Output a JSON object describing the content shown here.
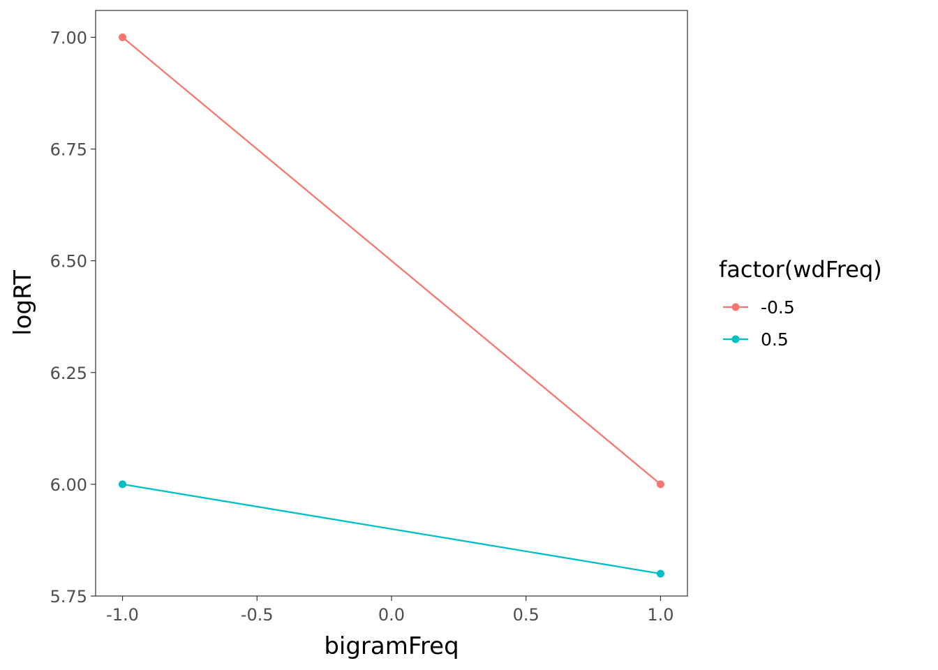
{
  "chart_data": {
    "type": "line",
    "title": "",
    "xlabel": "bigramFreq",
    "ylabel": "logRT",
    "xlim": [
      -1.1,
      1.1
    ],
    "ylim": [
      5.75,
      7.06
    ],
    "xticks": [
      -1.0,
      -0.5,
      0.0,
      0.5,
      1.0
    ],
    "xtick_labels": [
      "-1.0",
      "-0.5",
      "0.0",
      "0.5",
      "1.0"
    ],
    "yticks": [
      5.75,
      6.0,
      6.25,
      6.5,
      6.75,
      7.0
    ],
    "ytick_labels": [
      "5.75",
      "6.00",
      "6.25",
      "6.50",
      "6.75",
      "7.00"
    ],
    "grid": false,
    "legend": {
      "title": "factor(wdFreq)",
      "placement": "right"
    },
    "series": [
      {
        "name": "-0.5",
        "color": "#F8766D",
        "x": [
          -1.0,
          1.0
        ],
        "y": [
          7.0,
          6.0
        ]
      },
      {
        "name": "0.5",
        "color": "#00BFC4",
        "x": [
          -1.0,
          1.0
        ],
        "y": [
          6.0,
          5.8
        ]
      }
    ]
  }
}
